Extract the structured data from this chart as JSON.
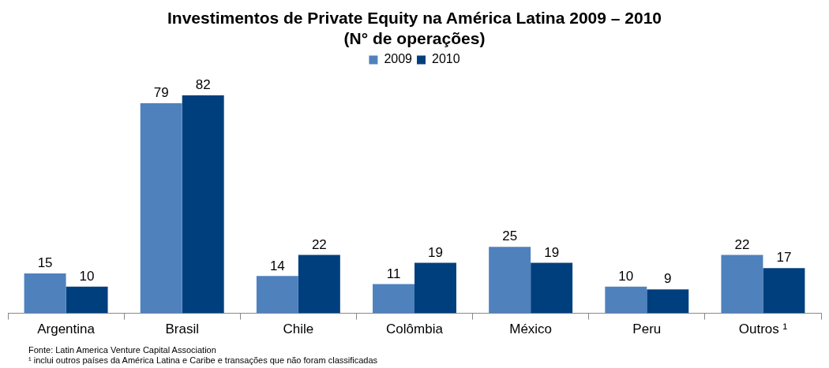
{
  "chart_data": {
    "type": "bar",
    "title": "Investimentos de Private Equity na América Latina 2009 – 2010",
    "subtitle": "(N° de operações)",
    "categories": [
      "Argentina",
      "Brasil",
      "Chile",
      "Colômbia",
      "México",
      "Peru",
      "Outros ¹"
    ],
    "series": [
      {
        "name": "2009",
        "color": "#4f81bd",
        "values": [
          15,
          79,
          14,
          11,
          25,
          10,
          22
        ]
      },
      {
        "name": "2010",
        "color": "#003f7d",
        "values": [
          10,
          82,
          22,
          19,
          19,
          9,
          17
        ]
      }
    ],
    "data_labels": true,
    "grid": false,
    "legend": "top",
    "annotations": [
      "Fonte: Latin America Venture Capital Association",
      "¹ inclui outros países da América Latina e Caribe e transações que não foram classificadas"
    ]
  }
}
